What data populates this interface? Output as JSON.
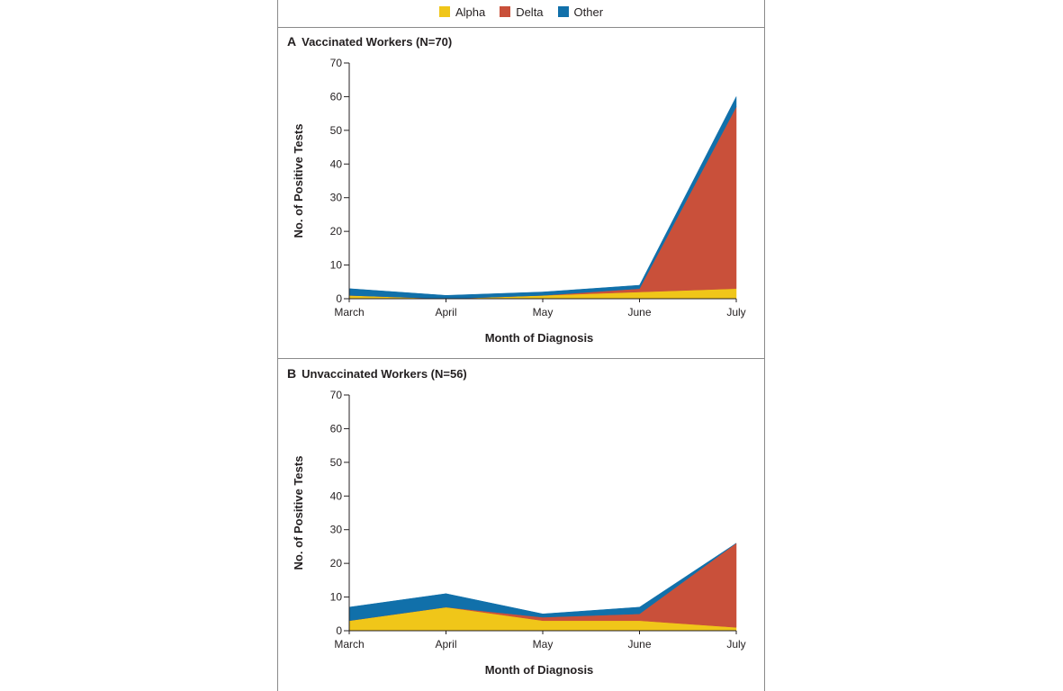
{
  "legend": {
    "items": [
      {
        "label": "Alpha",
        "color": "#f0c619"
      },
      {
        "label": "Delta",
        "color": "#c9503a"
      },
      {
        "label": "Other",
        "color": "#1170aa"
      }
    ]
  },
  "chart_data": [
    {
      "type": "area",
      "panel_letter": "A",
      "title": "Vaccinated Workers (N=70)",
      "xlabel": "Month of Diagnosis",
      "ylabel": "No. of Positive Tests",
      "categories": [
        "March",
        "April",
        "May",
        "June",
        "July"
      ],
      "yticks": [
        0,
        10,
        20,
        30,
        40,
        50,
        60,
        70
      ],
      "ylim": [
        0,
        70
      ],
      "stacked": true,
      "series": [
        {
          "name": "Alpha",
          "color": "#f0c619",
          "values": [
            1,
            0,
            1,
            2,
            3
          ]
        },
        {
          "name": "Delta",
          "color": "#c9503a",
          "values": [
            0,
            0,
            0,
            1,
            54
          ]
        },
        {
          "name": "Other",
          "color": "#1170aa",
          "values": [
            2,
            1,
            1,
            1,
            3
          ]
        }
      ]
    },
    {
      "type": "area",
      "panel_letter": "B",
      "title": "Unvaccinated Workers (N=56)",
      "xlabel": "Month of Diagnosis",
      "ylabel": "No. of Positive Tests",
      "categories": [
        "March",
        "April",
        "May",
        "June",
        "July"
      ],
      "yticks": [
        0,
        10,
        20,
        30,
        40,
        50,
        60,
        70
      ],
      "ylim": [
        0,
        70
      ],
      "stacked": true,
      "series": [
        {
          "name": "Alpha",
          "color": "#f0c619",
          "values": [
            3,
            7,
            3,
            3,
            1
          ]
        },
        {
          "name": "Delta",
          "color": "#c9503a",
          "values": [
            0,
            0,
            1,
            2,
            25
          ]
        },
        {
          "name": "Other",
          "color": "#1170aa",
          "values": [
            4,
            4,
            1,
            2,
            0
          ]
        }
      ]
    }
  ]
}
